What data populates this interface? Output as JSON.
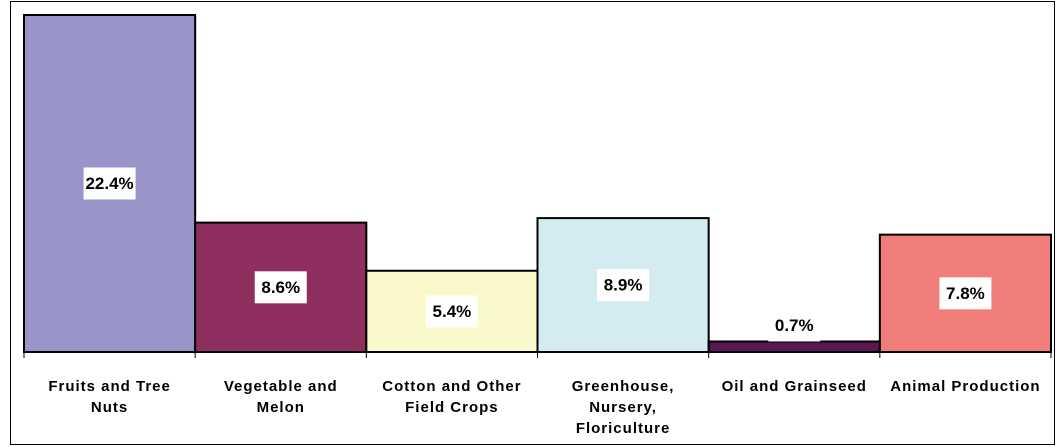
{
  "chart_data": {
    "type": "bar",
    "categories": [
      "Fruits and Tree Nuts",
      "Vegetable and Melon",
      "Cotton and Other Field Crops",
      "Greenhouse, Nursery, Floriculture",
      "Oil and Grainseed",
      "Animal Production"
    ],
    "values": [
      22.4,
      8.6,
      5.4,
      8.9,
      0.7,
      7.8
    ],
    "value_labels": [
      "22.4%",
      "8.6%",
      "5.4%",
      "8.9%",
      "0.7%",
      "7.8%"
    ],
    "colors": [
      "#9a95c9",
      "#8f2f5f",
      "#fbf9cb",
      "#d4ecf1",
      "#5b1751",
      "#f17d7b"
    ]
  }
}
